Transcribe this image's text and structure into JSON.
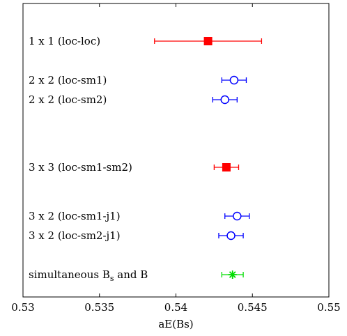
{
  "chart_data": {
    "type": "scatter",
    "title": "",
    "xlabel": "aE(Bs)",
    "ylabel": "",
    "xlim": [
      0.53,
      0.55
    ],
    "x_ticks": [
      "0.53",
      "0.535",
      "0.54",
      "0.545",
      "0.55"
    ],
    "x_tick_values": [
      0.53,
      0.535,
      0.54,
      0.545,
      0.55
    ],
    "grid": false,
    "legend": "none",
    "points": [
      {
        "label": "1 x 1 (loc-loc)",
        "x": 0.5421,
        "err_low": 0.0035,
        "err_high": 0.0035,
        "marker": "filled-square",
        "color": "#ff0000"
      },
      {
        "label": "2 x 2 (loc-sm1)",
        "x": 0.5438,
        "err_low": 0.0008,
        "err_high": 0.0008,
        "marker": "open-circle",
        "color": "#0000ff"
      },
      {
        "label": "2 x 2 (loc-sm2)",
        "x": 0.5432,
        "err_low": 0.0008,
        "err_high": 0.0008,
        "marker": "open-circle",
        "color": "#0000ff"
      },
      {
        "label": "3 x 3 (loc-sm1-sm2)",
        "x": 0.5433,
        "err_low": 0.0008,
        "err_high": 0.0008,
        "marker": "filled-square",
        "color": "#ff0000"
      },
      {
        "label": "3 x 2 (loc-sm1-j1)",
        "x": 0.544,
        "err_low": 0.0008,
        "err_high": 0.0008,
        "marker": "open-circle",
        "color": "#0000ff"
      },
      {
        "label": "3 x 2 (loc-sm2-j1)",
        "x": 0.5436,
        "err_low": 0.0008,
        "err_high": 0.0008,
        "marker": "open-circle",
        "color": "#0000ff"
      },
      {
        "label": "simultaneous B",
        "label_sub": "s",
        "label_tail": " and B",
        "x": 0.5437,
        "err_low": 0.0007,
        "err_high": 0.0007,
        "marker": "asterisk",
        "color": "#00dd00"
      }
    ]
  }
}
